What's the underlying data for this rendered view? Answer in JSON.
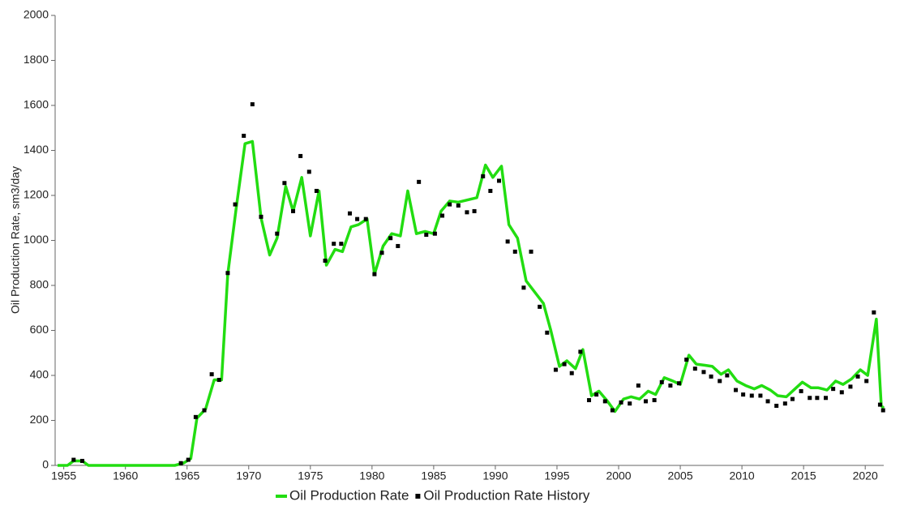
{
  "chart_data": {
    "type": "line",
    "ylabel": "Oil Production Rate, sm3/day",
    "xlim": [
      1954.3,
      2021.5
    ],
    "xticks": [
      1955,
      1960,
      1965,
      1970,
      1975,
      1980,
      1985,
      1990,
      1995,
      2000,
      2005,
      2010,
      2015,
      2020
    ],
    "ylim": [
      0,
      2000
    ],
    "yticks": [
      0,
      200,
      400,
      600,
      800,
      1000,
      1200,
      1400,
      1600,
      1800,
      2000
    ],
    "grid": false,
    "legend": "bottom",
    "series": [
      {
        "name": "Oil Production Rate",
        "color": "#22dd11",
        "type": "line",
        "x": [
          1954.5,
          1955.3,
          1955.8,
          1956.5,
          1957,
          1964,
          1964.7,
          1965.3,
          1965.8,
          1966.5,
          1967.2,
          1967.8,
          1968.3,
          1969,
          1969.7,
          1970.3,
          1971,
          1971.7,
          1972.3,
          1973,
          1973.6,
          1974.3,
          1975,
          1975.7,
          1976.3,
          1977,
          1977.6,
          1978.3,
          1978.9,
          1979.6,
          1980.2,
          1980.9,
          1981.6,
          1982.3,
          1982.9,
          1983.6,
          1984.3,
          1985,
          1985.6,
          1986.3,
          1987,
          1988.5,
          1989.2,
          1989.8,
          1990.5,
          1991.1,
          1991.8,
          1992.5,
          1993.2,
          1993.9,
          1994.5,
          1995.2,
          1995.8,
          1996.5,
          1997.1,
          1997.8,
          1998.4,
          1999.1,
          1999.7,
          2000.4,
          2001,
          2001.7,
          2002.4,
          2003,
          2003.7,
          2004.4,
          2005,
          2005.7,
          2006.3,
          2007,
          2007.6,
          2008.3,
          2008.9,
          2009.6,
          2010.3,
          2011,
          2011.6,
          2012.3,
          2012.9,
          2013.6,
          2014.2,
          2014.9,
          2015.6,
          2016.2,
          2016.9,
          2017.6,
          2018.2,
          2018.9,
          2019.6,
          2020.2,
          2020.9,
          2021.3,
          2021.5
        ],
        "values": [
          0,
          0,
          20,
          20,
          0,
          0,
          10,
          30,
          210,
          250,
          380,
          380,
          850,
          1150,
          1430,
          1440,
          1100,
          935,
          1010,
          1240,
          1130,
          1280,
          1020,
          1220,
          890,
          960,
          950,
          1060,
          1070,
          1095,
          850,
          975,
          1030,
          1020,
          1220,
          1030,
          1040,
          1030,
          1130,
          1175,
          1170,
          1190,
          1335,
          1280,
          1330,
          1070,
          1010,
          820,
          770,
          720,
          600,
          440,
          465,
          430,
          515,
          310,
          330,
          285,
          240,
          295,
          305,
          295,
          330,
          315,
          390,
          375,
          360,
          490,
          450,
          445,
          440,
          405,
          425,
          375,
          355,
          340,
          355,
          335,
          310,
          305,
          335,
          370,
          345,
          345,
          335,
          375,
          360,
          385,
          425,
          400,
          650,
          265,
          255
        ]
      },
      {
        "name": "Oil Production Rate History",
        "color": "#000000",
        "type": "scatter",
        "x": [
          1955.8,
          1956.5,
          1964.5,
          1965.1,
          1965.7,
          1966.4,
          1967,
          1967.6,
          1968.3,
          1968.9,
          1969.6,
          1970.3,
          1971,
          1972.3,
          1972.9,
          1973.6,
          1974.2,
          1974.9,
          1975.5,
          1976.2,
          1976.9,
          1977.5,
          1978.2,
          1978.8,
          1979.5,
          1980.2,
          1980.8,
          1981.5,
          1982.1,
          1983.8,
          1984.4,
          1985.1,
          1985.7,
          1986.3,
          1987,
          1987.7,
          1988.3,
          1989,
          1989.6,
          1990.3,
          1991,
          1991.6,
          1992.3,
          1992.9,
          1993.6,
          1994.2,
          1994.9,
          1995.6,
          1996.2,
          1996.9,
          1997.6,
          1998.2,
          1998.9,
          1999.5,
          2000.2,
          2000.9,
          2001.6,
          2002.2,
          2002.9,
          2003.5,
          2004.2,
          2004.9,
          2005.5,
          2006.2,
          2006.9,
          2007.5,
          2008.2,
          2008.8,
          2009.5,
          2010.1,
          2010.8,
          2011.5,
          2012.1,
          2012.8,
          2013.5,
          2014.1,
          2014.8,
          2015.5,
          2016.1,
          2016.8,
          2017.4,
          2018.1,
          2018.8,
          2019.4,
          2020.1,
          2020.7,
          2021.2,
          2021.45
        ],
        "values": [
          25,
          20,
          10,
          25,
          215,
          245,
          405,
          380,
          855,
          1160,
          1465,
          1605,
          1105,
          1030,
          1255,
          1130,
          1375,
          1305,
          1220,
          910,
          985,
          985,
          1120,
          1095,
          1095,
          850,
          945,
          1010,
          975,
          1260,
          1025,
          1030,
          1110,
          1160,
          1155,
          1125,
          1130,
          1285,
          1220,
          1265,
          995,
          950,
          790,
          950,
          705,
          590,
          425,
          450,
          410,
          505,
          290,
          315,
          285,
          245,
          280,
          275,
          355,
          285,
          290,
          370,
          355,
          365,
          470,
          430,
          415,
          395,
          375,
          400,
          335,
          315,
          310,
          310,
          285,
          265,
          275,
          295,
          330,
          300,
          300,
          300,
          340,
          325,
          350,
          395,
          375,
          680,
          270,
          245
        ]
      }
    ]
  }
}
